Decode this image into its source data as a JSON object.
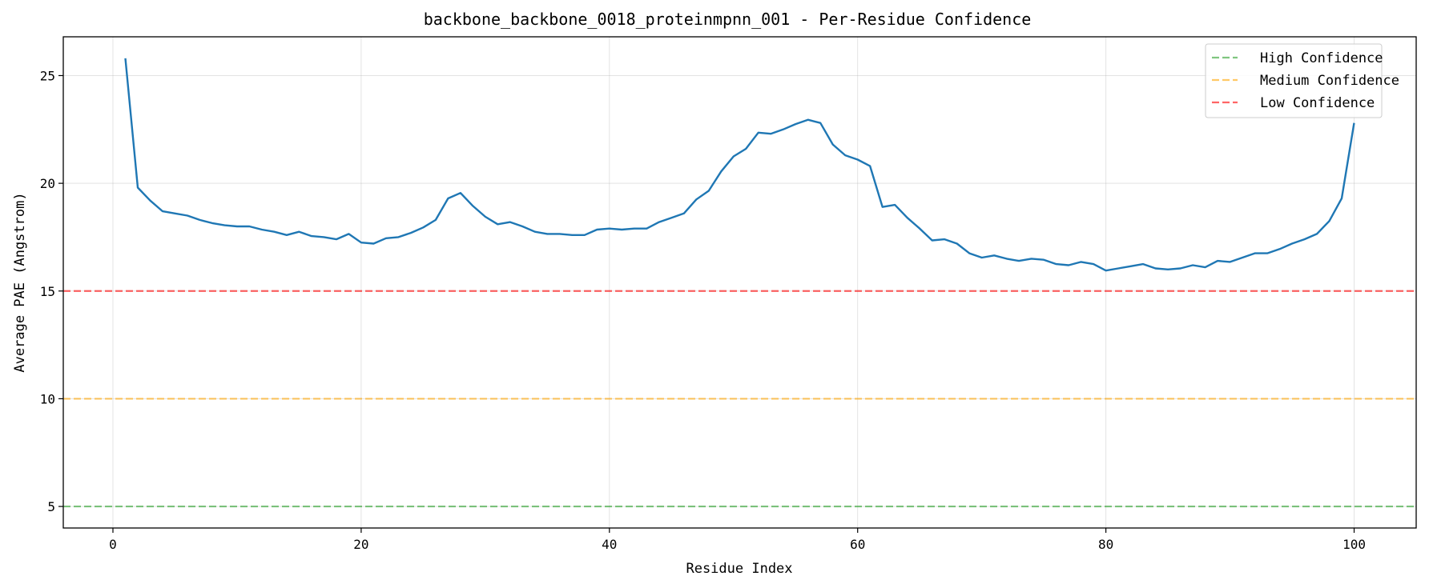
{
  "chart_data": {
    "type": "line",
    "title": "backbone_backbone_0018_proteinmpnn_001 - Per-Residue Confidence",
    "xlabel": "Residue Index",
    "ylabel": "Average PAE (Angstrom)",
    "xlim": [
      -4,
      105
    ],
    "ylim": [
      4,
      26.8
    ],
    "xticks": [
      0,
      20,
      40,
      60,
      80,
      100
    ],
    "yticks": [
      5,
      10,
      15,
      20,
      25
    ],
    "grid": true,
    "legend_position": "top-right",
    "series": [
      {
        "color": "#1f77b4",
        "x": [
          1,
          2,
          3,
          4,
          5,
          6,
          7,
          8,
          9,
          10,
          11,
          12,
          13,
          14,
          15,
          16,
          17,
          18,
          19,
          20,
          21,
          22,
          23,
          24,
          25,
          26,
          27,
          28,
          29,
          30,
          31,
          32,
          33,
          34,
          35,
          36,
          37,
          38,
          39,
          40,
          41,
          42,
          43,
          44,
          45,
          46,
          47,
          48,
          49,
          50,
          51,
          52,
          53,
          54,
          55,
          56,
          57,
          58,
          59,
          60,
          61,
          62,
          63,
          64,
          65,
          66,
          67,
          68,
          69,
          70,
          71,
          72,
          73,
          74,
          75,
          76,
          77,
          78,
          79,
          80,
          81,
          82,
          83,
          84,
          85,
          86,
          87,
          88,
          89,
          90,
          91,
          92,
          93,
          94,
          95,
          96,
          97,
          98,
          99,
          100
        ],
        "values": [
          25.8,
          19.8,
          19.2,
          18.7,
          18.6,
          18.5,
          18.3,
          18.15,
          18.05,
          18.0,
          18.0,
          17.85,
          17.75,
          17.6,
          17.75,
          17.55,
          17.5,
          17.4,
          17.65,
          17.25,
          17.2,
          17.45,
          17.5,
          17.7,
          17.95,
          18.3,
          19.3,
          19.55,
          18.95,
          18.45,
          18.1,
          18.2,
          18.0,
          17.75,
          17.65,
          17.65,
          17.6,
          17.6,
          17.85,
          17.9,
          17.85,
          17.9,
          17.9,
          18.2,
          18.4,
          18.6,
          19.25,
          19.65,
          20.55,
          21.25,
          21.6,
          22.35,
          22.3,
          22.5,
          22.75,
          22.95,
          22.8,
          21.8,
          21.3,
          21.1,
          20.8,
          18.9,
          19.0,
          18.4,
          17.9,
          17.35,
          17.4,
          17.2,
          16.75,
          16.55,
          16.65,
          16.5,
          16.4,
          16.5,
          16.45,
          16.25,
          16.2,
          16.35,
          16.25,
          15.95,
          16.05,
          16.15,
          16.25,
          16.05,
          16.0,
          16.05,
          16.2,
          16.1,
          16.4,
          16.35,
          16.55,
          16.75,
          16.75,
          16.95,
          17.2,
          17.4,
          17.65,
          18.25,
          19.3,
          22.8
        ]
      }
    ],
    "reference_lines": [
      {
        "name": "High Confidence",
        "y": 5,
        "color": "#2ca02c"
      },
      {
        "name": "Medium Confidence",
        "y": 10,
        "color": "#ffa500"
      },
      {
        "name": "Low Confidence",
        "y": 15,
        "color": "#ff0000"
      }
    ]
  }
}
